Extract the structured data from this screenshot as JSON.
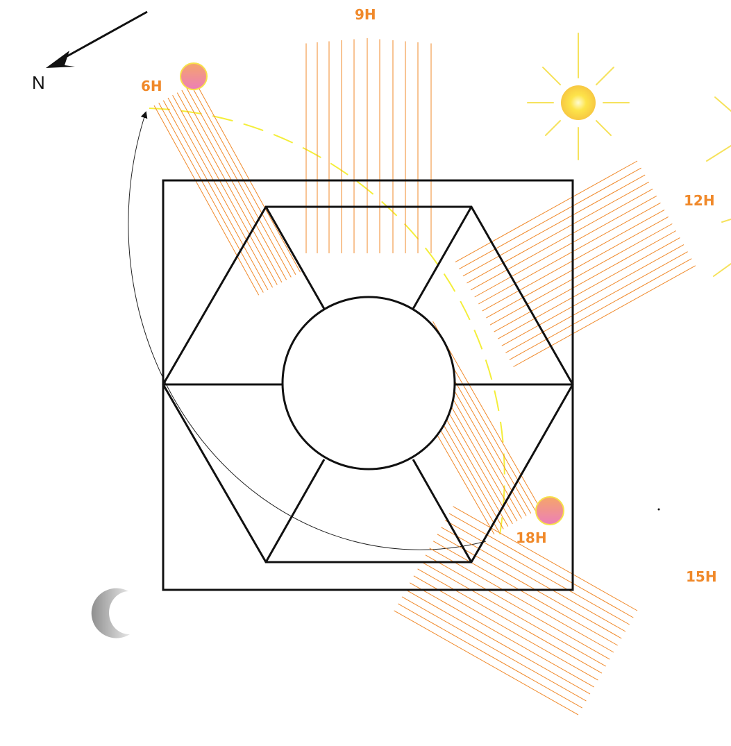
{
  "compass": {
    "label": "N"
  },
  "hour_labels": [
    {
      "id": "6h",
      "text": "6H"
    },
    {
      "id": "9h",
      "text": "9H"
    },
    {
      "id": "12h",
      "text": "12H"
    },
    {
      "id": "15h",
      "text": "15H"
    },
    {
      "id": "18h",
      "text": "18H"
    }
  ],
  "colors": {
    "sun_path": "#f4ee3a",
    "rays": "#f0892a",
    "label": "#f0892a",
    "sun_disk": "#fde44a",
    "sun_rays": "#f6e25c",
    "sun_low": "#f28aa0",
    "outline": "#111111"
  },
  "icons": [
    "north-arrow-icon",
    "sun-icon",
    "rising-sun-icon",
    "setting-sun-icon",
    "moon-icon"
  ]
}
